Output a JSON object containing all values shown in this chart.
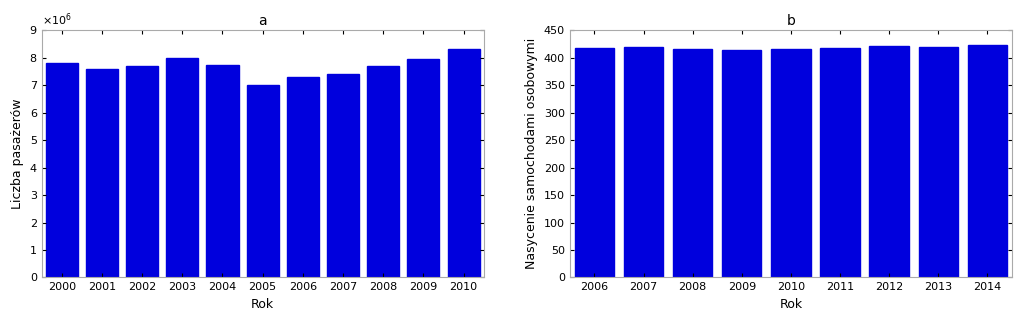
{
  "chart_a": {
    "title": "a",
    "years": [
      2000,
      2001,
      2002,
      2003,
      2004,
      2005,
      2006,
      2007,
      2008,
      2009,
      2010
    ],
    "values": [
      7800000,
      7600000,
      7700000,
      8000000,
      7750000,
      7000000,
      7300000,
      7400000,
      7700000,
      7950000,
      8300000
    ],
    "ylabel": "Liczba pasażerów",
    "xlabel": "Rok",
    "ylim": [
      0,
      9000000
    ],
    "yticks": [
      0,
      1000000,
      2000000,
      3000000,
      4000000,
      5000000,
      6000000,
      7000000,
      8000000,
      9000000
    ],
    "bar_color": "#0000DD",
    "bar_width": 0.8
  },
  "chart_b": {
    "title": "b",
    "years": [
      2006,
      2007,
      2008,
      2009,
      2010,
      2011,
      2012,
      2013,
      2014
    ],
    "values": [
      418,
      420,
      416,
      414,
      416,
      418,
      421,
      420,
      423
    ],
    "ylabel": "Nasycenie samochodami osobowymi",
    "xlabel": "Rok",
    "ylim": [
      0,
      450
    ],
    "yticks": [
      0,
      50,
      100,
      150,
      200,
      250,
      300,
      350,
      400,
      450
    ],
    "bar_color": "#0000DD",
    "bar_width": 0.8
  },
  "fig_bgcolor": "#ffffff",
  "axes_bgcolor": "#ffffff"
}
